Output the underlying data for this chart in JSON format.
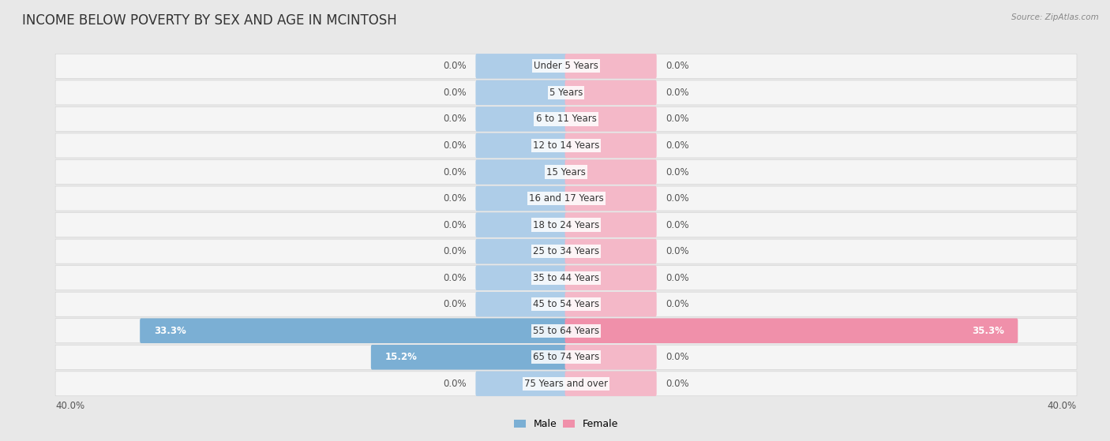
{
  "title": "INCOME BELOW POVERTY BY SEX AND AGE IN MCINTOSH",
  "source": "Source: ZipAtlas.com",
  "categories": [
    "Under 5 Years",
    "5 Years",
    "6 to 11 Years",
    "12 to 14 Years",
    "15 Years",
    "16 and 17 Years",
    "18 to 24 Years",
    "25 to 34 Years",
    "35 to 44 Years",
    "45 to 54 Years",
    "55 to 64 Years",
    "65 to 74 Years",
    "75 Years and over"
  ],
  "male_values": [
    0.0,
    0.0,
    0.0,
    0.0,
    0.0,
    0.0,
    0.0,
    0.0,
    0.0,
    0.0,
    33.3,
    15.2,
    0.0
  ],
  "female_values": [
    0.0,
    0.0,
    0.0,
    0.0,
    0.0,
    0.0,
    0.0,
    0.0,
    0.0,
    0.0,
    35.3,
    0.0,
    0.0
  ],
  "male_color": "#7bafd4",
  "female_color": "#f090aa",
  "male_color_light": "#aecde8",
  "female_color_light": "#f4b8c8",
  "background_color": "#e8e8e8",
  "row_bg_color": "#f5f5f5",
  "axis_max": 40.0,
  "label_fontsize": 8.5,
  "title_fontsize": 12,
  "legend_male": "Male",
  "legend_female": "Female",
  "stub_size": 7.0
}
